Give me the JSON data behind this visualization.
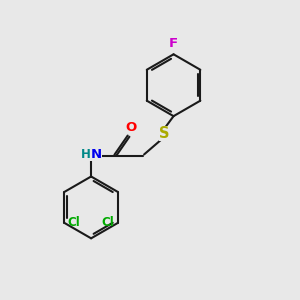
{
  "bg_color": "#e8e8e8",
  "bond_color": "#1a1a1a",
  "bond_width": 1.5,
  "atom_colors": {
    "F": "#cc00cc",
    "S": "#aaaa00",
    "O": "#ff0000",
    "N": "#0000ee",
    "H": "#008888",
    "Cl": "#00aa00"
  },
  "font_size": 9.5,
  "font_size_small": 8.5
}
